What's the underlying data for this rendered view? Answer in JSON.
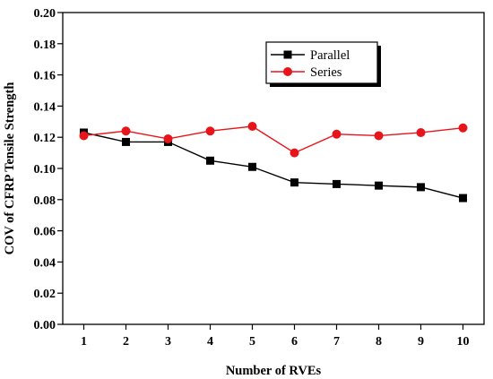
{
  "chart_data": {
    "type": "line",
    "title": "",
    "xlabel": "Number of RVEs",
    "ylabel": "COV of CFRP Tensile Strength",
    "x": [
      1,
      2,
      3,
      4,
      5,
      6,
      7,
      8,
      9,
      10
    ],
    "xlim": [
      0.5,
      10.5
    ],
    "ylim": [
      0,
      0.2
    ],
    "xticks": [
      "1",
      "2",
      "3",
      "4",
      "5",
      "6",
      "7",
      "8",
      "9",
      "10"
    ],
    "yticks": [
      "0.00",
      "0.02",
      "0.04",
      "0.06",
      "0.08",
      "0.10",
      "0.12",
      "0.14",
      "0.16",
      "0.18",
      "0.20"
    ],
    "ytick_values": [
      0,
      0.02,
      0.04,
      0.06,
      0.08,
      0.1,
      0.12,
      0.14,
      0.16,
      0.18,
      0.2
    ],
    "grid": false,
    "legend_position": "top-right",
    "series": [
      {
        "name": "Parallel",
        "color": "#000000",
        "marker": "square",
        "values": [
          0.123,
          0.117,
          0.117,
          0.105,
          0.101,
          0.091,
          0.09,
          0.089,
          0.088,
          0.081
        ]
      },
      {
        "name": "Series",
        "color": "#e8141b",
        "marker": "circle",
        "values": [
          0.121,
          0.124,
          0.119,
          0.124,
          0.127,
          0.11,
          0.122,
          0.121,
          0.123,
          0.126
        ]
      }
    ]
  }
}
